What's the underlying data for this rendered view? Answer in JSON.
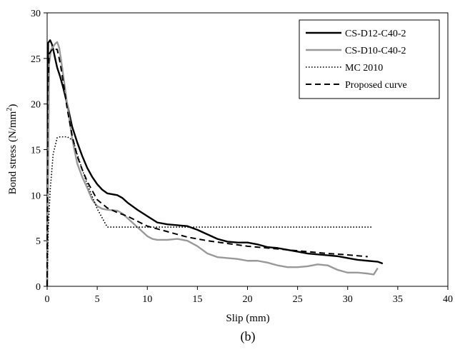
{
  "chart_data": {
    "type": "line",
    "xlabel": "Slip (mm)",
    "ylabel": "Bond stress (N/mm²)",
    "ylabel_main": "Bond stress (N/mm",
    "ylabel_sup": "2",
    "ylabel_end": ")",
    "caption": "(b)",
    "xlim": [
      0,
      40
    ],
    "ylim": [
      0,
      30
    ],
    "xticks": [
      "0",
      "5",
      "10",
      "15",
      "20",
      "25",
      "30",
      "35",
      "40"
    ],
    "yticks": [
      "0",
      "5",
      "10",
      "15",
      "20",
      "25",
      "30"
    ],
    "grid": false,
    "legend_position": "top-right",
    "series": [
      {
        "name": "CS-D12-C40-2",
        "color": "#000000",
        "style": "solid",
        "x": [
          0,
          0.1,
          0.3,
          0.5,
          0.8,
          1.0,
          1.3,
          1.6,
          2.0,
          2.5,
          3.0,
          3.5,
          4.0,
          4.5,
          5.0,
          5.5,
          6.0,
          6.5,
          7.0,
          7.5,
          8.0,
          9.0,
          10.0,
          11.0,
          12.0,
          13.0,
          14.0,
          15.0,
          16.0,
          17.0,
          18.0,
          19.0,
          20.0,
          21.0,
          22.0,
          23.0,
          24.0,
          25.0,
          26.0,
          27.0,
          28.0,
          29.0,
          30.0,
          31.0,
          32.0,
          33.0,
          33.5
        ],
        "y": [
          0,
          26.7,
          27.0,
          26.5,
          25.0,
          24.0,
          23.0,
          21.8,
          20.0,
          17.5,
          15.8,
          14.3,
          13.0,
          12.0,
          11.2,
          10.6,
          10.2,
          10.1,
          10.0,
          9.7,
          9.2,
          8.4,
          7.7,
          7.0,
          6.8,
          6.7,
          6.6,
          6.2,
          5.7,
          5.2,
          4.9,
          4.8,
          4.8,
          4.6,
          4.3,
          4.2,
          4.0,
          3.8,
          3.6,
          3.5,
          3.4,
          3.3,
          3.1,
          2.9,
          2.8,
          2.7,
          2.5
        ]
      },
      {
        "name": "CS-D10-C40-2",
        "color": "#999999",
        "style": "solid",
        "x": [
          0,
          0.2,
          0.4,
          0.6,
          0.8,
          1.0,
          1.2,
          1.5,
          2.0,
          2.5,
          3.0,
          3.5,
          4.0,
          4.5,
          5.0,
          5.5,
          6.0,
          7.0,
          7.5,
          8.0,
          8.5,
          9.0,
          9.5,
          10.0,
          10.5,
          11.0,
          12.0,
          13.0,
          14.0,
          15.0,
          16.0,
          17.0,
          18.0,
          19.0,
          20.0,
          21.0,
          22.0,
          23.0,
          24.0,
          25.0,
          26.0,
          27.0,
          28.0,
          29.0,
          30.0,
          31.0,
          32.0,
          32.6,
          33.0
        ],
        "y": [
          0,
          24.5,
          26.0,
          26.3,
          26.6,
          26.8,
          26.2,
          24.0,
          20.0,
          16.2,
          13.5,
          12.0,
          10.8,
          9.5,
          8.8,
          8.5,
          8.4,
          8.3,
          8.0,
          7.5,
          7.0,
          6.5,
          6.0,
          5.5,
          5.2,
          5.1,
          5.1,
          5.2,
          5.0,
          4.4,
          3.6,
          3.2,
          3.1,
          3.0,
          2.8,
          2.8,
          2.6,
          2.3,
          2.1,
          2.1,
          2.2,
          2.4,
          2.3,
          1.8,
          1.5,
          1.5,
          1.4,
          1.3,
          2.0
        ]
      },
      {
        "name": "MC 2010",
        "color": "#000000",
        "style": "dotted",
        "x": [
          0,
          0.1,
          0.3,
          0.6,
          1.0,
          1.3,
          2.0,
          2.6,
          3.0,
          4.0,
          5.0,
          6.0,
          10.0,
          20.0,
          30.0,
          32.5
        ],
        "y": [
          0,
          6.0,
          10.5,
          14.5,
          16.3,
          16.4,
          16.4,
          16.0,
          14.5,
          11.2,
          8.5,
          6.5,
          6.5,
          6.5,
          6.5,
          6.5
        ]
      },
      {
        "name": "Proposed curve",
        "color": "#000000",
        "style": "dashed",
        "x": [
          0,
          0.05,
          0.2,
          0.5,
          1.0,
          1.3,
          1.6,
          2.0,
          2.5,
          3.0,
          3.5,
          4.0,
          5.0,
          6.0,
          7.0,
          8.0,
          10.0,
          12.0,
          14.0,
          16.0,
          18.0,
          20.0,
          22.0,
          24.0,
          26.0,
          28.0,
          30.0,
          32.0
        ],
        "y": [
          0,
          21.0,
          25.5,
          26.0,
          26.0,
          24.5,
          22.5,
          19.5,
          16.5,
          14.3,
          12.8,
          11.5,
          9.5,
          8.6,
          8.1,
          7.7,
          6.6,
          6.0,
          5.4,
          5.0,
          4.7,
          4.4,
          4.2,
          4.0,
          3.8,
          3.6,
          3.45,
          3.25
        ]
      }
    ]
  }
}
